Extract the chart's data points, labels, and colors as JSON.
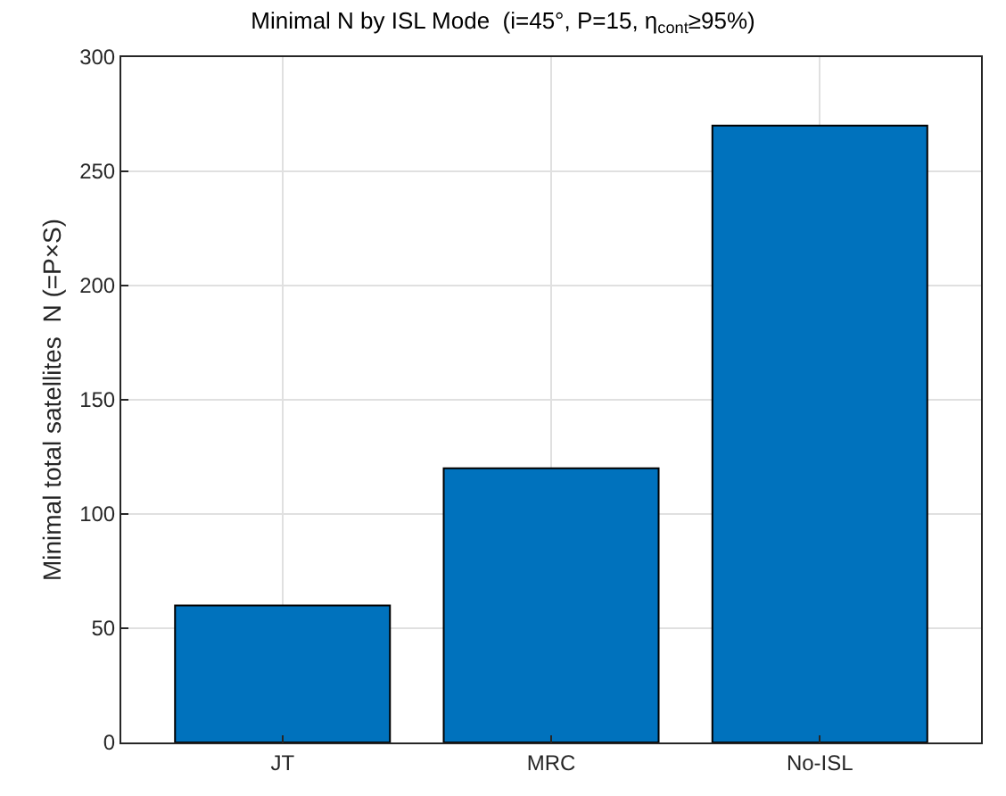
{
  "chart_data": {
    "type": "bar",
    "title": "Minimal N by ISL Mode  (i=45°, P=15, η$_{cont}$≥95%)",
    "ylabel": "Minimal total satellites  N (=P×S)",
    "categories": [
      "JT",
      "MRC",
      "No-ISL"
    ],
    "values": [
      60,
      120,
      270
    ],
    "color": "#0072bd",
    "ylim": [
      0,
      300
    ],
    "yticks": [
      0,
      50,
      100,
      150,
      200,
      250,
      300
    ],
    "grid": true
  }
}
